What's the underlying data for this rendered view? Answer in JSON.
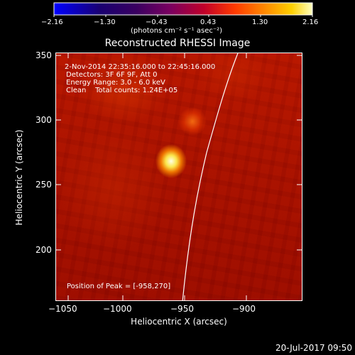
{
  "colorbar": {
    "ticks": [
      "−2.16",
      "−1.30",
      "−0.43",
      "0.43",
      "1.30",
      "2.16"
    ],
    "units": "(photons cm⁻² s⁻¹ asec⁻²)"
  },
  "title": "Reconstructed RHESSI Image",
  "overlay": {
    "time_range": "2-Nov-2014 22:35:16.000 to 22:45:16.000",
    "detectors": "Detectors: 3F 6F 9F, Att 0",
    "energy_range": "Energy Range: 3.0 - 6.0 keV",
    "method_counts": "Clean    Total counts: 1.24E+05",
    "peak": "Position of Peak = [-958,270]"
  },
  "axes": {
    "xlabel": "Heliocentric X (arcsec)",
    "ylabel": "Heliocentric Y (arcsec)",
    "x_ticks": [
      "−1050",
      "−1000",
      "−950",
      "−900"
    ],
    "y_ticks": [
      "350",
      "300",
      "250",
      "200"
    ]
  },
  "footer_timestamp": "20-Jul-2017 09:50",
  "colors": {
    "background": "#000000",
    "axis": "#ffffff"
  }
}
